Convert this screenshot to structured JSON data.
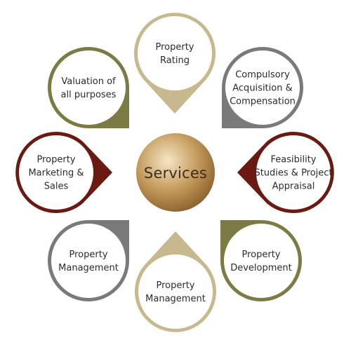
{
  "diagram": {
    "center": {
      "label": "Services",
      "color_light": "#f6e6c4",
      "color_mid": "#c49a5c",
      "color_dark": "#8a5e2c"
    },
    "nodes": [
      {
        "id": "property-rating",
        "lines": [
          "Property",
          "Rating"
        ],
        "color": "#c8b88e"
      },
      {
        "id": "compulsory-acquisition",
        "lines": [
          "Compulsory",
          "Acquisition &",
          "Compensation"
        ],
        "color": "#7a7a7a"
      },
      {
        "id": "feasibility-studies",
        "lines": [
          "Feasibility",
          "Studies & Project",
          "Appraisal"
        ],
        "color": "#6b1a12"
      },
      {
        "id": "property-development",
        "lines": [
          "Property",
          "Development"
        ],
        "color": "#7c7b45"
      },
      {
        "id": "property-management-bottom",
        "lines": [
          "Property",
          "Management"
        ],
        "color": "#c8b88e"
      },
      {
        "id": "property-management-left",
        "lines": [
          "Property",
          "Management"
        ],
        "color": "#7a7a7a"
      },
      {
        "id": "property-marketing-sales",
        "lines": [
          "Property",
          "Marketing &",
          "Sales"
        ],
        "color": "#6b1a12"
      },
      {
        "id": "valuation-all-purposes",
        "lines": [
          "Valuation of",
          "all purposes"
        ],
        "color": "#7c7b45"
      }
    ]
  }
}
